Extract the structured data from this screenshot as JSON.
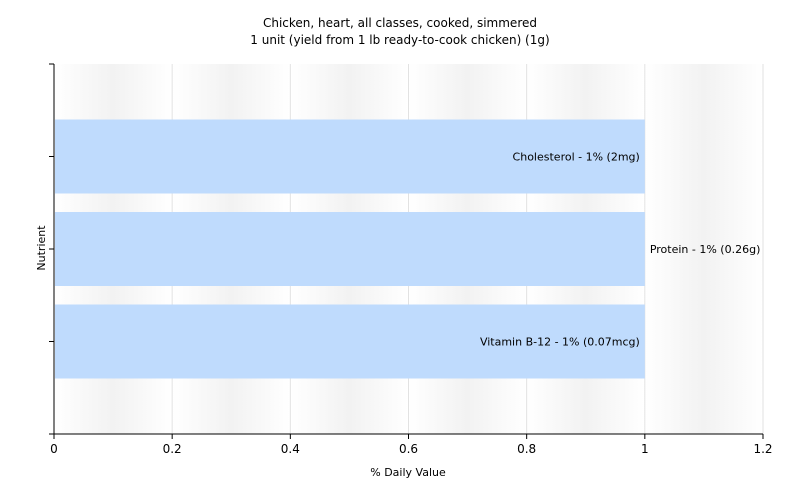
{
  "chart_data": {
    "type": "bar",
    "orientation": "horizontal",
    "title": "Chicken, heart, all classes, cooked, simmered",
    "subtitle": "1 unit (yield from 1 lb ready-to-cook chicken) (1g)",
    "xlabel": "% Daily Value",
    "ylabel": "Nutrient",
    "xlim": [
      0,
      1.2
    ],
    "xticks": [
      "0",
      "0.2",
      "0.4",
      "0.6",
      "0.8",
      "1",
      "1.2"
    ],
    "categories": [
      "Cholesterol",
      "Protein",
      "Vitamin B-12"
    ],
    "values": [
      1,
      1,
      1
    ],
    "bar_labels": [
      "Cholesterol - 1% (2mg)",
      "Protein - 1% (0.26g)",
      "Vitamin B-12 - 1% (0.07mcg)"
    ],
    "bar_color": "#bfdbfd",
    "grid": "vertical",
    "legend": "none"
  }
}
